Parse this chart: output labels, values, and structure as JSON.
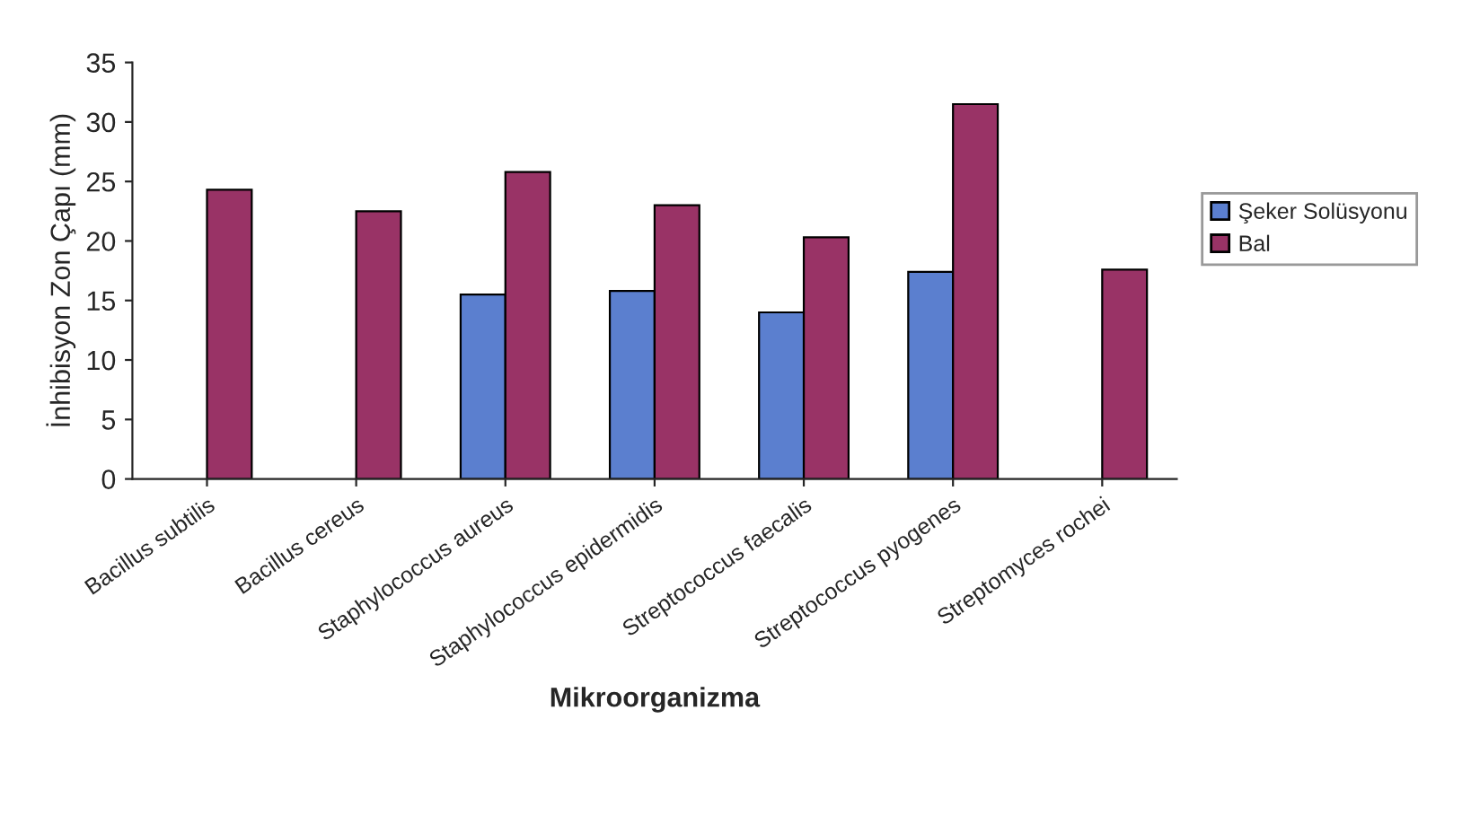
{
  "chart_data": {
    "type": "bar",
    "xlabel": "Mikroorganizma",
    "ylabel": "İnhibisyon Zon Çapı (mm)",
    "categories": [
      "Bacillus subtilis",
      "Bacillus cereus",
      "Staphylococcus aureus",
      "Staphylococcus epidermidis",
      "Streptococcus faecalis",
      "Streptococcus pyogenes",
      "Streptomyces rochei"
    ],
    "series": [
      {
        "name": "Şeker Solüsyonu",
        "color": "#5b7fcf",
        "values": [
          null,
          null,
          15.5,
          15.8,
          14,
          17.4,
          null
        ]
      },
      {
        "name": "Bal",
        "color": "#993366",
        "values": [
          24.3,
          22.5,
          25.8,
          23,
          20.3,
          31.5,
          17.6
        ]
      }
    ],
    "ylim": [
      0,
      35
    ],
    "yticks": [
      0,
      5,
      10,
      15,
      20,
      25,
      30,
      35
    ],
    "grid": false,
    "legend": "right"
  }
}
